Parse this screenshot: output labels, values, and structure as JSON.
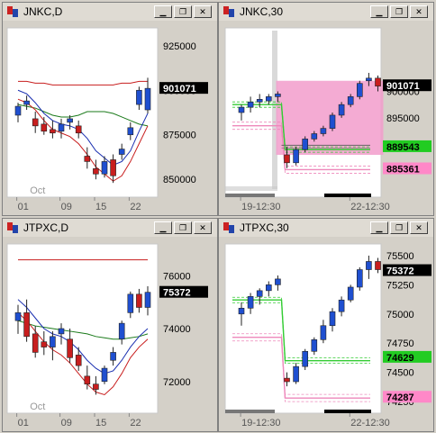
{
  "colors": {
    "up": "#1f4fd0",
    "down": "#c81e1e",
    "ma_long": "#c81e1e",
    "ma_mid": "#1a7a1a",
    "ma_short": "#1a2fb0",
    "band_green": "#33cc33",
    "band_pink": "#ee88bb",
    "band_gray": "#666666",
    "zone": "#f29ccb"
  },
  "windows": [
    {
      "id": "jnkc-d",
      "title": "JNKC,D",
      "buttons": [
        "minimize",
        "restore",
        "close"
      ],
      "chart_data": {
        "type": "candlestick",
        "ylim": [
          840000,
          935000
        ],
        "yticks": [
          "925000",
          "900000",
          "875000",
          "850000"
        ],
        "yvals": [
          925000,
          900000,
          875000,
          850000
        ],
        "xticks": [
          "01",
          "09",
          "15",
          "22"
        ],
        "xtick_idx": [
          1,
          6,
          10,
          14
        ],
        "month_label": "Oct",
        "last_price": "901071",
        "last_value": 901071,
        "candles": [
          [
            886000,
            893000,
            882000,
            891000
          ],
          [
            892000,
            897000,
            889000,
            894000
          ],
          [
            884000,
            888000,
            876000,
            880000
          ],
          [
            881000,
            885000,
            875000,
            877000
          ],
          [
            878000,
            883000,
            873000,
            876000
          ],
          [
            877000,
            884000,
            873000,
            881000
          ],
          [
            882000,
            886000,
            878000,
            884000
          ],
          [
            880000,
            883000,
            873000,
            876000
          ],
          [
            863000,
            868000,
            856000,
            860000
          ],
          [
            856000,
            861000,
            850000,
            853000
          ],
          [
            853000,
            863000,
            851000,
            860000
          ],
          [
            861000,
            864000,
            848000,
            852000
          ],
          [
            864000,
            870000,
            861000,
            867000
          ],
          [
            875000,
            882000,
            872000,
            879000
          ],
          [
            892000,
            902000,
            889000,
            900000
          ],
          [
            889000,
            907000,
            887000,
            901071
          ]
        ],
        "ma": [
          {
            "name": "ma_long",
            "values": [
              905000,
              905000,
              904000,
              904000,
              903000,
              903000,
              903000,
              903000,
              903000,
              903000,
              903000,
              903000,
              904000,
              904000,
              905000,
              905000
            ]
          },
          {
            "name": "ma_mid",
            "values": [
              892000,
              891000,
              890000,
              888000,
              886000,
              885000,
              885000,
              886000,
              888000,
              888000,
              888000,
              887000,
              885000,
              883000,
              881000,
              880000
            ]
          },
          {
            "name": "ma_short",
            "values": [
              900000,
              898000,
              893000,
              887000,
              883000,
              881000,
              880000,
              878000,
              873000,
              866000,
              862000,
              858000,
              860000,
              866000,
              877000,
              887000
            ]
          },
          {
            "name": "ma_lower",
            "values": [
              895000,
              893000,
              889000,
              883000,
              878000,
              876000,
              874000,
              870000,
              864000,
              857000,
              853000,
              849000,
              852000,
              860000,
              870000,
              880000
            ]
          }
        ]
      }
    },
    {
      "id": "jnkc-30",
      "title": "JNKC,30",
      "buttons": [
        "minimize",
        "restore",
        "close"
      ],
      "chart_data": {
        "type": "candlestick",
        "ylim": [
          880000,
          912000
        ],
        "yticks": [
          "900000",
          "895000",
          "890000",
          "885000"
        ],
        "yvals": [
          900000,
          895000,
          890000,
          885000
        ],
        "xticks": [
          "19-12:30",
          "22-12:30"
        ],
        "xtick_idx": [
          1,
          13
        ],
        "last_price": "901071",
        "last_value": 901071,
        "band_labels": [
          {
            "text": "889543",
            "value": 889543,
            "color": "band_green"
          },
          {
            "text": "885361",
            "value": 885361,
            "color": "band_pink"
          }
        ],
        "candles": [
          [
            896000,
            897500,
            894500,
            897000
          ],
          [
            897000,
            899000,
            896000,
            898000
          ],
          [
            898000,
            899500,
            897000,
            898500
          ],
          [
            898200,
            899500,
            897500,
            899000
          ],
          [
            899000,
            900000,
            898000,
            899500
          ],
          [
            888000,
            889500,
            885500,
            886500
          ],
          [
            886500,
            889500,
            886000,
            889000
          ],
          [
            889000,
            891500,
            888500,
            891000
          ],
          [
            891000,
            892500,
            890500,
            892000
          ],
          [
            892000,
            893500,
            891500,
            893000
          ],
          [
            893000,
            896000,
            892500,
            895500
          ],
          [
            895500,
            898000,
            895000,
            897500
          ],
          [
            897500,
            899500,
            897000,
            899000
          ],
          [
            899000,
            902000,
            898500,
            901500
          ],
          [
            902000,
            903500,
            901000,
            902500
          ],
          [
            902500,
            903000,
            900000,
            901000
          ]
        ]
      }
    },
    {
      "id": "jtpxc-d",
      "title": "JTPXC,D",
      "buttons": [
        "minimize",
        "restore",
        "close"
      ],
      "chart_data": {
        "type": "candlestick",
        "ylim": [
          70800,
          77200
        ],
        "yticks": [
          "76000",
          "74000",
          "72000"
        ],
        "yvals": [
          76000,
          74000,
          72000
        ],
        "xticks": [
          "01",
          "09",
          "15",
          "22"
        ],
        "xtick_idx": [
          1,
          6,
          10,
          14
        ],
        "month_label": "Oct",
        "last_price": "75372",
        "last_value": 75372,
        "candles": [
          [
            74300,
            74900,
            73800,
            74600
          ],
          [
            74600,
            75100,
            73500,
            73700
          ],
          [
            73800,
            74100,
            72900,
            73100
          ],
          [
            73500,
            73900,
            73000,
            73300
          ],
          [
            73300,
            73900,
            72800,
            73700
          ],
          [
            73800,
            74200,
            73400,
            74000
          ],
          [
            73600,
            74000,
            72700,
            72900
          ],
          [
            73000,
            73300,
            72400,
            72600
          ],
          [
            72200,
            72600,
            71700,
            71900
          ],
          [
            71900,
            72200,
            71500,
            71700
          ],
          [
            72000,
            72600,
            71900,
            72500
          ],
          [
            72800,
            73300,
            72600,
            73100
          ],
          [
            73600,
            74300,
            73400,
            74200
          ],
          [
            74600,
            75400,
            74400,
            75300
          ],
          [
            75300,
            75500,
            74600,
            74800
          ],
          [
            74800,
            75600,
            74500,
            75372
          ]
        ],
        "ma": [
          {
            "name": "ma_long",
            "values": [
              76600,
              76600,
              76600,
              76600,
              76600,
              76600,
              76600,
              76600,
              76600,
              76600,
              76600,
              76600,
              76600,
              76600,
              76600,
              76600
            ]
          },
          {
            "name": "ma_mid",
            "values": [
              74300,
              74200,
              74100,
              74050,
              74000,
              73950,
              73900,
              73850,
              73800,
              73700,
              73650,
              73600,
              73600,
              73650,
              73700,
              73800
            ]
          },
          {
            "name": "ma_short",
            "values": [
              75100,
              74800,
              74400,
              74000,
              73800,
              73700,
              73500,
              73200,
              72800,
              72500,
              72300,
              72400,
              72800,
              73300,
              73700,
              74000
            ]
          },
          {
            "name": "ma_lower",
            "values": [
              74600,
              74300,
              73900,
              73500,
              73200,
              73000,
              72700,
              72300,
              71900,
              71600,
              71500,
              71800,
              72300,
              72900,
              73300,
              73600
            ]
          }
        ]
      }
    },
    {
      "id": "jtpxc-30",
      "title": "JTPXC,30",
      "buttons": [
        "minimize",
        "restore",
        "close"
      ],
      "chart_data": {
        "type": "candlestick",
        "ylim": [
          74150,
          75600
        ],
        "yticks": [
          "75500",
          "75250",
          "75000",
          "74750",
          "74500",
          "74250"
        ],
        "yvals": [
          75500,
          75250,
          75000,
          74750,
          74500,
          74250
        ],
        "xticks": [
          "19-12:30",
          "22-12:30"
        ],
        "xtick_idx": [
          1,
          13
        ],
        "last_price": "75372",
        "last_value": 75372,
        "band_labels": [
          {
            "text": "74629",
            "value": 74629,
            "color": "band_green"
          },
          {
            "text": "74287",
            "value": 74287,
            "color": "band_pink"
          }
        ],
        "candles": [
          [
            75000,
            75100,
            74900,
            75050
          ],
          [
            75050,
            75180,
            75000,
            75150
          ],
          [
            75150,
            75220,
            75080,
            75200
          ],
          [
            75200,
            75280,
            75150,
            75250
          ],
          [
            75250,
            75330,
            75200,
            75300
          ],
          [
            74450,
            74500,
            74380,
            74420
          ],
          [
            74420,
            74580,
            74400,
            74550
          ],
          [
            74550,
            74700,
            74520,
            74680
          ],
          [
            74680,
            74800,
            74650,
            74780
          ],
          [
            74780,
            74950,
            74750,
            74900
          ],
          [
            74900,
            75050,
            74850,
            75020
          ],
          [
            75020,
            75150,
            74980,
            75120
          ],
          [
            75120,
            75250,
            75100,
            75230
          ],
          [
            75230,
            75400,
            75200,
            75380
          ],
          [
            75380,
            75500,
            75300,
            75450
          ],
          [
            75450,
            75480,
            75350,
            75380
          ]
        ]
      }
    }
  ]
}
